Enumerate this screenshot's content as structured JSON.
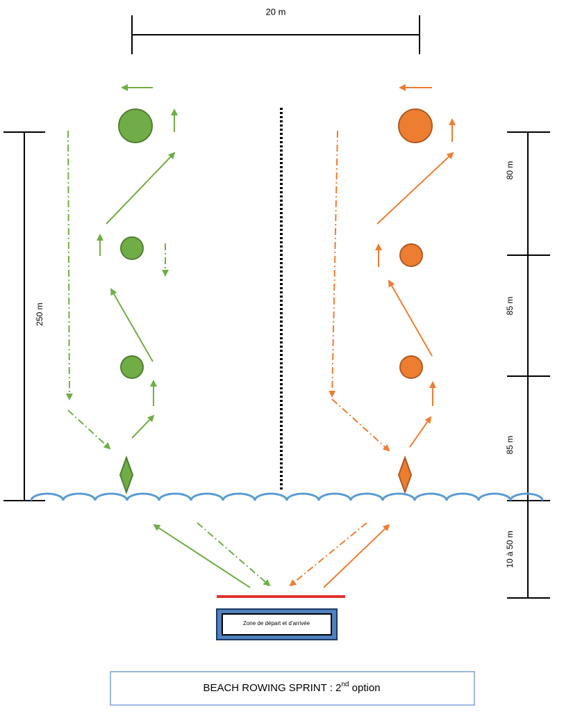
{
  "top_dimension": "20 m",
  "left_dimension": "250 m",
  "right_dimensions": [
    "80 m",
    "85 m",
    "85 m",
    "10 à 50 m"
  ],
  "start_zone": "Zone de départ et d’arrivée",
  "title": {
    "text": "BEACH ROWING SPRINT : 2",
    "sup": "nd",
    "suffix": " option"
  }
}
